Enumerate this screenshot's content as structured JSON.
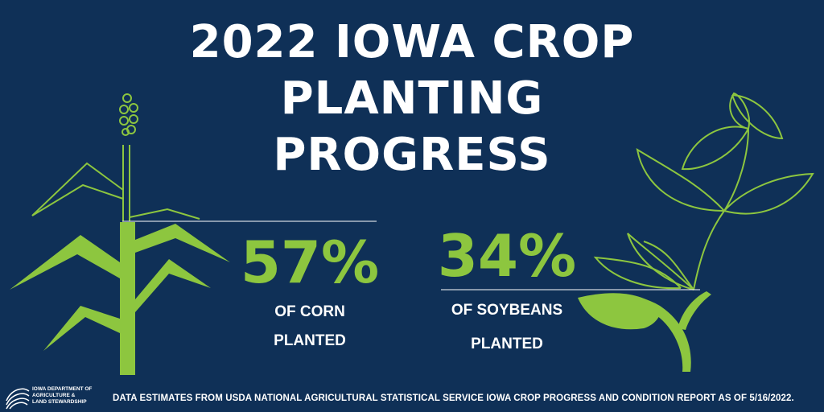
{
  "title": {
    "line1": "2022 IOWA CROP",
    "line2": "PLANTING",
    "line3": "PROGRESS"
  },
  "corn": {
    "percent": "57%",
    "label_line1": "OF CORN",
    "label_line2": "PLANTED"
  },
  "soybeans": {
    "percent": "34%",
    "label_line1": "OF SOYBEANS",
    "label_line2": "PLANTED"
  },
  "footer": {
    "source_text": "DATA ESTIMATES FROM USDA NATIONAL AGRICULTURAL STATISTICAL SERVICE IOWA CROP PROGRESS AND CONDITION REPORT AS OF 5/16/2022.",
    "logo_line1": "IOWA DEPARTMENT OF",
    "logo_line2": "AGRICULTURE &",
    "logo_line3": "LAND STEWARDSHIP"
  },
  "colors": {
    "background": "#0f3057",
    "accent_green": "#8dc63f",
    "text": "#ffffff"
  }
}
